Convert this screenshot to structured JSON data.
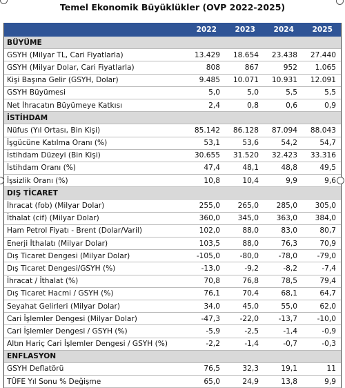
{
  "title": "Temel Ekonomik Büyüklükler (OVP 2022-2025)",
  "header": {
    "years": [
      "2022",
      "2023",
      "2024",
      "2025"
    ]
  },
  "sections": [
    {
      "title": "BÜYÜME",
      "rows": [
        {
          "label": "GSYH (Milyar TL, Cari Fiyatlarla)",
          "values": [
            "13.429",
            "18.654",
            "23.438",
            "27.440"
          ]
        },
        {
          "label": "GSYH (Milyar Dolar, Cari Fiyatlarla)",
          "values": [
            "808",
            "867",
            "952",
            "1.065"
          ]
        },
        {
          "label": "Kişi Başına Gelir (GSYH, Dolar)",
          "values": [
            "9.485",
            "10.071",
            "10.931",
            "12.091"
          ]
        },
        {
          "label": "GSYH Büyümesi",
          "values": [
            "5,0",
            "5,0",
            "5,5",
            "5,5"
          ]
        },
        {
          "label": "Net İhracatın Büyümeye Katkısı",
          "values": [
            "2,4",
            "0,8",
            "0,6",
            "0,9"
          ]
        }
      ]
    },
    {
      "title": "İSTİHDAM",
      "rows": [
        {
          "label": "Nüfus (Yıl Ortası, Bin Kişi)",
          "values": [
            "85.142",
            "86.128",
            "87.094",
            "88.043"
          ]
        },
        {
          "label": "İşgücüne Katılma Oranı (%)",
          "values": [
            "53,1",
            "53,6",
            "54,2",
            "54,7"
          ]
        },
        {
          "label": "İstihdam Düzeyi (Bin Kişi)",
          "values": [
            "30.655",
            "31.520",
            "32.423",
            "33.316"
          ]
        },
        {
          "label": "İstihdam Oranı (%)",
          "values": [
            "47,4",
            "48,1",
            "48,8",
            "49,5"
          ]
        },
        {
          "label": "İşsizlik Oranı (%)",
          "values": [
            "10,8",
            "10,4",
            "9,9",
            "9,6"
          ]
        }
      ]
    },
    {
      "title": "DIŞ TİCARET",
      "rows": [
        {
          "label": "İhracat (fob) (Milyar Dolar)",
          "values": [
            "255,0",
            "265,0",
            "285,0",
            "305,0"
          ]
        },
        {
          "label": "İthalat (cif) (Milyar Dolar)",
          "values": [
            "360,0",
            "345,0",
            "363,0",
            "384,0"
          ]
        },
        {
          "label": "Ham Petrol Fiyatı - Brent (Dolar/Varil)",
          "values": [
            "102,0",
            "88,0",
            "83,0",
            "80,7"
          ]
        },
        {
          "label": "Enerji İthalatı (Milyar Dolar)",
          "values": [
            "103,5",
            "88,0",
            "76,3",
            "70,9"
          ]
        },
        {
          "label": "Dış Ticaret Dengesi (Milyar Dolar)",
          "values": [
            "-105,0",
            "-80,0",
            "-78,0",
            "-79,0"
          ]
        },
        {
          "label": "Dış Ticaret Dengesi/GSYH (%)",
          "values": [
            "-13,0",
            "-9,2",
            "-8,2",
            "-7,4"
          ]
        },
        {
          "label": "İhracat / İthalat (%)",
          "values": [
            "70,8",
            "76,8",
            "78,5",
            "79,4"
          ]
        },
        {
          "label": "Dış Ticaret Hacmi / GSYH (%)",
          "values": [
            "76,1",
            "70,4",
            "68,1",
            "64,7"
          ]
        },
        {
          "label": "Seyahat Gelirleri (Milyar Dolar)",
          "values": [
            "34,0",
            "45,0",
            "55,0",
            "62,0"
          ]
        },
        {
          "label": "Cari İşlemler Dengesi (Milyar Dolar)",
          "values": [
            "-47,3",
            "-22,0",
            "-13,7",
            "-10,0"
          ]
        },
        {
          "label": "Cari İşlemler Dengesi / GSYH (%)",
          "values": [
            "-5,9",
            "-2,5",
            "-1,4",
            "-0,9"
          ]
        },
        {
          "label": "Altın Hariç Cari İşlemler Dengesi / GSYH (%)",
          "values": [
            "-2,2",
            "-1,4",
            "-0,7",
            "-0,3"
          ]
        }
      ]
    },
    {
      "title": "ENFLASYON",
      "rows": [
        {
          "label": "GSYH Deflatörü",
          "values": [
            "76,5",
            "32,3",
            "19,1",
            "11"
          ]
        },
        {
          "label": "TÜFE Yıl Sonu % Değişme",
          "values": [
            "65,0",
            "24,9",
            "13,8",
            "9,9"
          ]
        }
      ]
    }
  ]
}
